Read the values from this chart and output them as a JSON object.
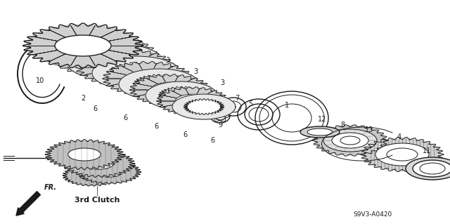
{
  "bg_color": "#ffffff",
  "fig_width": 6.4,
  "fig_height": 3.19,
  "dpi": 100,
  "line_color": "#1a1a1a",
  "text_color": "#1a1a1a",
  "label_3rd_clutch": "3rd Clutch",
  "diagram_code": "S9V3-A0420"
}
